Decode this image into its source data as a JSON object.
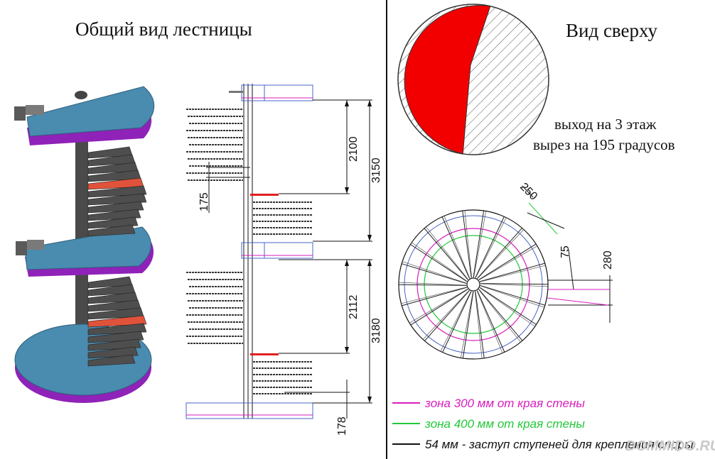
{
  "titles": {
    "general_view": "Общий вид лестницы",
    "top_view": "Вид сверху"
  },
  "notes": {
    "exit": "выход на 3 этаж",
    "cutout": "вырез на 195 градусов"
  },
  "dimensions": {
    "d2100": "2100",
    "d3150": "3150",
    "d175": "175",
    "d2112": "2112",
    "d3180": "3180",
    "d178": "178",
    "d250": "250",
    "d75": "75",
    "d280": "280"
  },
  "legend": [
    {
      "text": "зона 300 мм от края стены",
      "color": "#d81dbd"
    },
    {
      "text": "зона 400 мм от края стены",
      "color": "#22c93a"
    },
    {
      "text": "54 мм - заступ ступеней для крепления опоры",
      "color": "#111111"
    }
  ],
  "colors": {
    "platform_top": "#4a8bb0",
    "platform_side": "#a01fc0",
    "step": "#4e4e4e",
    "step_highlight": "#e0523a",
    "pie_red": "#f20000"
  },
  "top_view_pie": {
    "cutout_degrees": 195
  },
  "watermark": "DOMMIDO.RU"
}
